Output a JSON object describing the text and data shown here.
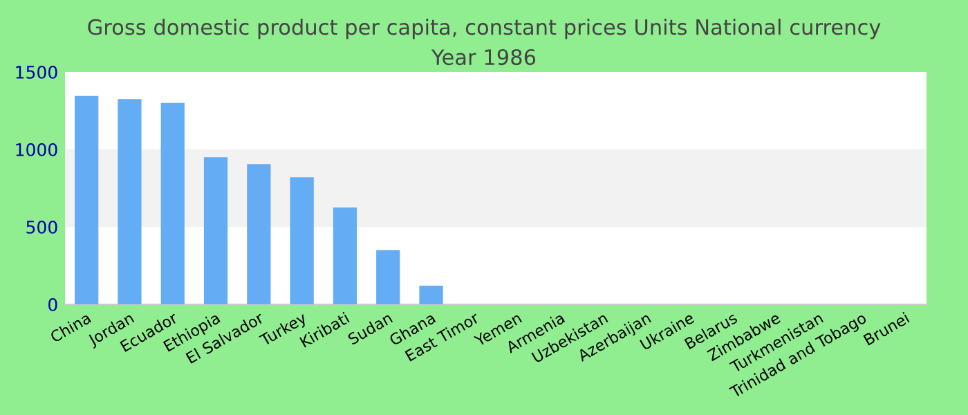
{
  "chart_data": {
    "type": "bar",
    "title": "Gross domestic product per capita, constant prices Units National currency\nYear 1986",
    "categories": [
      "China",
      "Jordan",
      "Ecuador",
      "Ethiopia",
      "El Salvador",
      "Turkey",
      "Kiribati",
      "Sudan",
      "Ghana",
      "East Timor",
      "Yemen",
      "Armenia",
      "Uzbekistan",
      "Azerbaijan",
      "Ukraine",
      "Belarus",
      "Zimbabwe",
      "Turkmenistan",
      "Trinidad and Tobago",
      "Brunei"
    ],
    "values": [
      1345,
      1325,
      1300,
      950,
      905,
      820,
      625,
      350,
      120,
      null,
      null,
      null,
      null,
      null,
      null,
      null,
      null,
      null,
      null,
      null
    ],
    "color": "#64adf4",
    "ylim": [
      0,
      1500
    ],
    "yticks": [
      0,
      500,
      1000,
      1500
    ],
    "bands": [
      {
        "axis": "y",
        "from": 500,
        "to": 1000,
        "color": "#f2f2f2"
      }
    ],
    "grid": false,
    "legend": false
  }
}
